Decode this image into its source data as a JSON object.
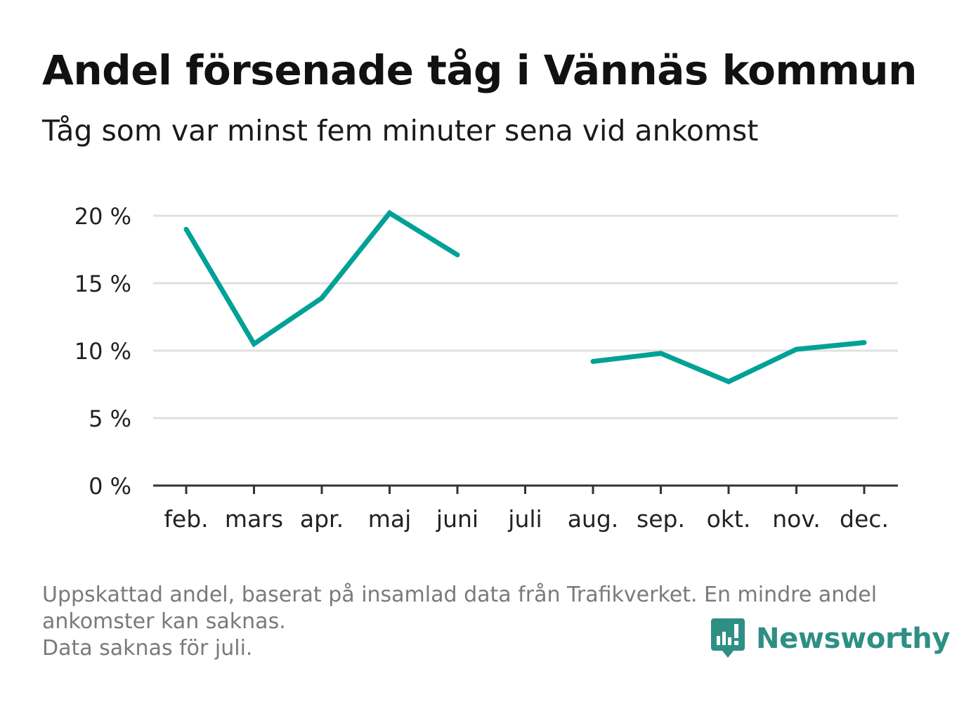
{
  "header": {
    "title": "Andel försenade tåg i Vännäs kommun",
    "subtitle": "Tåg som var minst fem minuter sena vid ankomst"
  },
  "chart_data": {
    "type": "line",
    "categories": [
      "feb.",
      "mars",
      "apr.",
      "maj",
      "juni",
      "juli",
      "aug.",
      "sep.",
      "okt.",
      "nov.",
      "dec."
    ],
    "series": [
      {
        "values": [
          19.0,
          10.5,
          13.9,
          20.2,
          17.1,
          null,
          9.2,
          9.8,
          7.7,
          10.1,
          10.6
        ]
      }
    ],
    "y_ticks": [
      0,
      5,
      10,
      15,
      20
    ],
    "y_tick_labels": [
      "0 %",
      "5 %",
      "10 %",
      "15 %",
      "20 %"
    ],
    "ylim": [
      0,
      20
    ],
    "grid": true,
    "line_color": "#00a197",
    "grid_color": "#e0e0e0",
    "axis_color": "#333333"
  },
  "footer": {
    "line1": "Uppskattad andel, baserat på insamlad data från Trafikverket. En mindre andel",
    "line2": "ankomster kan saknas.",
    "line3": "Data saknas för juli."
  },
  "brand": {
    "name": "Newsworthy",
    "logo_icon": "newsworthy-chart-bubble-icon",
    "color": "#2e8f84"
  }
}
